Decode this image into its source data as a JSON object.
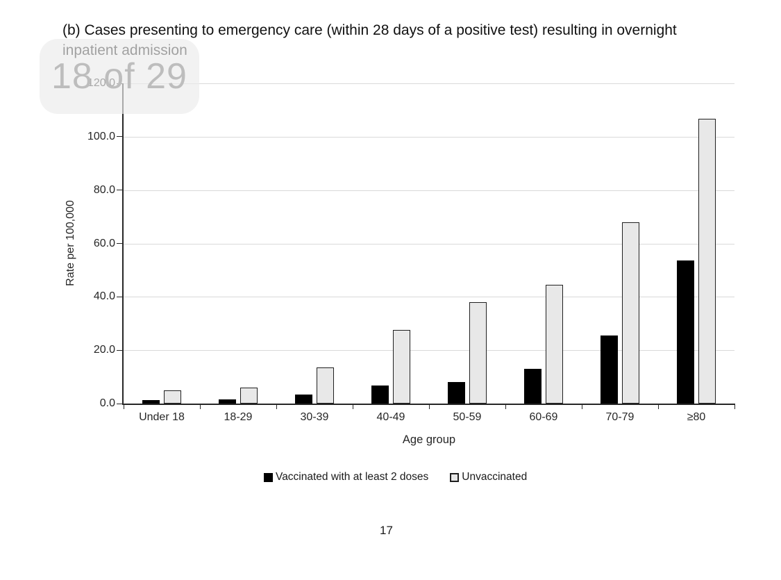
{
  "header": {
    "title_line1": "(b) Cases presenting to emergency care (within 28 days of a positive test) resulting in overnight",
    "title_line2": "inpatient admission"
  },
  "page_indicator": {
    "text": "18 of 29"
  },
  "footer": {
    "page_number": "17"
  },
  "chart_data": {
    "type": "bar",
    "title": "(b) Cases presenting to emergency care (within 28 days of a positive test) resulting in overnight inpatient admission",
    "categories": [
      "Under 18",
      "18-29",
      "30-39",
      "40-49",
      "50-59",
      "60-69",
      "70-79",
      "≥80"
    ],
    "series": [
      {
        "name": "Vaccinated with at least 2 doses",
        "color": "#000000",
        "values": [
          1.2,
          1.5,
          3.4,
          6.9,
          8.1,
          13.0,
          25.4,
          53.6
        ]
      },
      {
        "name": "Unvaccinated",
        "color": "#e8e8e8",
        "values": [
          5.0,
          6.1,
          13.6,
          27.5,
          38.0,
          44.5,
          68.0,
          106.8
        ]
      }
    ],
    "xlabel": "Age group",
    "ylabel": "Rate per 100,000",
    "ylim": [
      0,
      120
    ],
    "ytick_step": 20,
    "ytick_labels": [
      "0.0",
      "20.0",
      "40.0",
      "60.0",
      "80.0",
      "100.0",
      "120.0"
    ],
    "grid": true,
    "legend_position": "bottom",
    "colors": {
      "axis": "#262626",
      "gridline": "#d9d9d9",
      "bar_border": "#1f1f1f"
    }
  }
}
